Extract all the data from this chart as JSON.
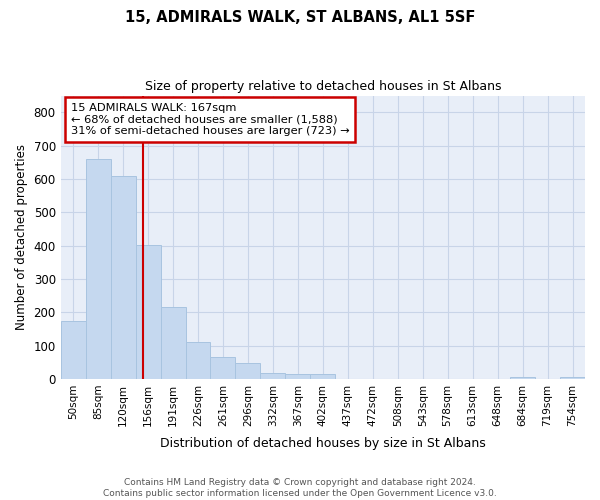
{
  "title1": "15, ADMIRALS WALK, ST ALBANS, AL1 5SF",
  "title2": "Size of property relative to detached houses in St Albans",
  "xlabel": "Distribution of detached houses by size in St Albans",
  "ylabel": "Number of detached properties",
  "bin_labels": [
    "50sqm",
    "85sqm",
    "120sqm",
    "156sqm",
    "191sqm",
    "226sqm",
    "261sqm",
    "296sqm",
    "332sqm",
    "367sqm",
    "402sqm",
    "437sqm",
    "472sqm",
    "508sqm",
    "543sqm",
    "578sqm",
    "613sqm",
    "648sqm",
    "684sqm",
    "719sqm",
    "754sqm"
  ],
  "bar_heights": [
    175,
    660,
    608,
    403,
    215,
    110,
    65,
    48,
    18,
    16,
    14,
    0,
    0,
    0,
    0,
    0,
    0,
    0,
    7,
    0,
    7
  ],
  "bar_color": "#c5d8ef",
  "bar_edge_color": "#a8c4e0",
  "bar_edge_width": 0.7,
  "grid_color": "#c8d4e8",
  "bg_color": "#ffffff",
  "plot_bg_color": "#e8eef8",
  "property_value": 167,
  "red_line_color": "#cc0000",
  "annotation_line1": "15 ADMIRALS WALK: 167sqm",
  "annotation_line2": "← 68% of detached houses are smaller (1,588)",
  "annotation_line3": "31% of semi-detached houses are larger (723) →",
  "annotation_box_color": "#ffffff",
  "annotation_border_color": "#cc0000",
  "footer_text": "Contains HM Land Registry data © Crown copyright and database right 2024.\nContains public sector information licensed under the Open Government Licence v3.0.",
  "ylim": [
    0,
    850
  ],
  "yticks": [
    0,
    100,
    200,
    300,
    400,
    500,
    600,
    700,
    800
  ]
}
